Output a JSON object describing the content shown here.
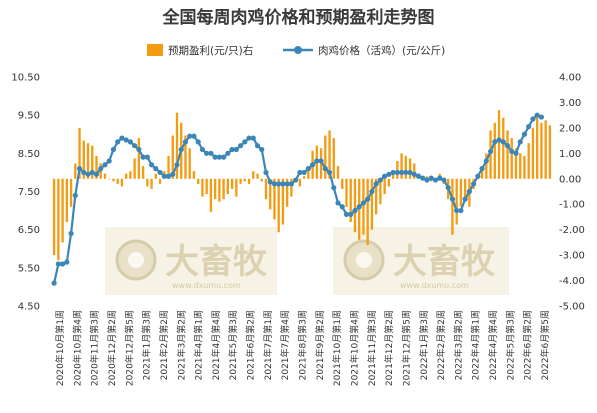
{
  "chart_data": {
    "type": "bar+line",
    "title": "全国每周肉鸡价格和预期盈利走势图",
    "legend": {
      "position": "top-center",
      "bar_label": "预期盈利(元/只)右",
      "line_label": "肉鸡价格（活鸡）(元/公斤)"
    },
    "colors": {
      "bar": "#f39c12",
      "line": "#3b86b6",
      "marker": "#3b86b6"
    },
    "left_axis": {
      "ticks": [
        "4.50",
        "5.50",
        "6.50",
        "7.50",
        "8.50",
        "9.50",
        "10.50"
      ],
      "min": 4.5,
      "max": 10.5
    },
    "right_axis": {
      "ticks": [
        "-5.00",
        "-4.00",
        "-3.00",
        "-2.00",
        "-1.00",
        "0.00",
        "1.00",
        "2.00",
        "3.00",
        "4.00"
      ],
      "min": -5,
      "max": 4
    },
    "x_labels": [
      "2020年10月第1周",
      "2020年10月第4周",
      "2020年11月第3周",
      "2020年12月第2周",
      "2020年12月第5周",
      "2021年1月第3周",
      "2021年2月第2周",
      "2021年3月第2周",
      "2021年4月第1周",
      "2021年4月第4周",
      "2021年5月第3周",
      "2021年6月第2周",
      "2021年7月第1周",
      "2021年7月第4周",
      "2021年8月第3周",
      "2021年9月第2周",
      "2021年10月第1周",
      "2021年10月第4周",
      "2021年11月第3周",
      "2021年12月第2周",
      "2021年12月第5周",
      "2022年1月第3周",
      "2022年2月第2周",
      "2022年3月第2周",
      "2022年4月第1周",
      "2022年4月第4周",
      "2022年5月第3周",
      "2022年6月第2周",
      "2022年6月第5周"
    ],
    "profit": [
      -3.0,
      -3.2,
      -2.5,
      -1.7,
      -1.1,
      0.6,
      2.0,
      1.5,
      1.4,
      1.3,
      0.9,
      0.6,
      0.2,
      0.0,
      -0.1,
      -0.2,
      -0.3,
      0.2,
      0.3,
      0.8,
      1.6,
      0.5,
      -0.3,
      -0.4,
      0.2,
      -0.2,
      0.3,
      0.9,
      1.7,
      2.6,
      2.2,
      1.7,
      1.2,
      0.3,
      -0.2,
      -0.7,
      -0.6,
      -1.3,
      -0.8,
      -0.9,
      -0.8,
      -0.6,
      -0.4,
      -0.7,
      -0.2,
      -0.1,
      -0.2,
      0.3,
      0.2,
      -0.1,
      -0.8,
      -1.2,
      -1.6,
      -2.1,
      -1.8,
      -1.1,
      -0.7,
      -0.1,
      -0.3,
      0.1,
      0.5,
      1.1,
      1.3,
      1.2,
      1.7,
      1.9,
      1.6,
      0.5,
      -0.4,
      -1.1,
      -1.7,
      -2.1,
      -2.4,
      -2.2,
      -2.6,
      -2.0,
      -1.4,
      -1.0,
      -0.6,
      -0.3,
      0.3,
      0.7,
      1.0,
      0.9,
      0.8,
      0.6,
      0.2,
      0.1,
      0.1,
      -0.1,
      0.0,
      0.2,
      -0.2,
      -0.8,
      -2.2,
      -1.8,
      -1.1,
      -0.9,
      -1.1,
      -0.4,
      0.0,
      0.5,
      1.0,
      1.9,
      2.2,
      2.7,
      2.4,
      1.9,
      1.6,
      1.2,
      1.0,
      0.9,
      1.4,
      2.0,
      2.4,
      2.2,
      2.3,
      2.1
    ],
    "price": [
      5.1,
      5.6,
      5.6,
      5.65,
      6.4,
      7.4,
      8.1,
      8.0,
      7.95,
      8.0,
      7.95,
      8.1,
      8.2,
      8.3,
      8.6,
      8.8,
      8.9,
      8.85,
      8.8,
      8.7,
      8.6,
      8.4,
      8.4,
      8.2,
      8.1,
      8.0,
      7.9,
      7.9,
      7.95,
      8.2,
      8.6,
      8.8,
      8.95,
      8.95,
      8.8,
      8.6,
      8.5,
      8.5,
      8.4,
      8.4,
      8.4,
      8.5,
      8.6,
      8.6,
      8.7,
      8.8,
      8.9,
      8.9,
      8.7,
      8.6,
      8.0,
      7.75,
      7.7,
      7.7,
      7.7,
      7.7,
      7.7,
      7.8,
      8.0,
      8.0,
      8.1,
      8.2,
      8.3,
      8.3,
      8.1,
      8.0,
      7.6,
      7.2,
      7.1,
      6.9,
      6.9,
      7.0,
      7.1,
      7.2,
      7.3,
      7.5,
      7.7,
      7.8,
      7.9,
      7.95,
      8.0,
      8.0,
      8.0,
      8.0,
      8.0,
      7.95,
      7.9,
      7.85,
      7.8,
      7.85,
      7.8,
      7.85,
      7.8,
      7.6,
      7.3,
      7.0,
      7.0,
      7.3,
      7.5,
      7.7,
      7.9,
      8.1,
      8.3,
      8.55,
      8.8,
      8.85,
      8.8,
      8.7,
      8.55,
      8.5,
      8.8,
      9.0,
      9.2,
      9.4,
      9.5,
      9.45
    ]
  },
  "watermark": {
    "text": "大畜牧",
    "url": "www.dxumu.com"
  }
}
